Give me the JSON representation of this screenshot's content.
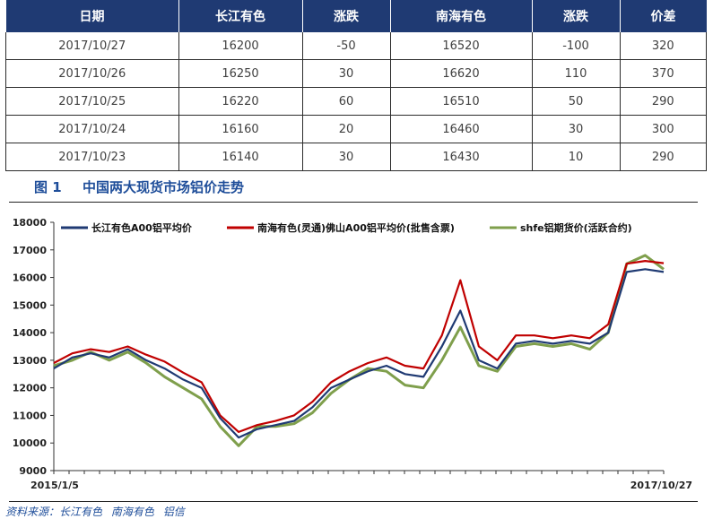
{
  "table": {
    "headers": [
      "日期",
      "长江有色",
      "涨跌",
      "南海有色",
      "涨跌",
      "价差"
    ],
    "rows": [
      [
        "2017/10/27",
        "16200",
        "-50",
        "16520",
        "-100",
        "320"
      ],
      [
        "2017/10/26",
        "16250",
        "30",
        "16620",
        "110",
        "370"
      ],
      [
        "2017/10/25",
        "16220",
        "60",
        "16510",
        "50",
        "290"
      ],
      [
        "2017/10/24",
        "16160",
        "20",
        "16460",
        "30",
        "300"
      ],
      [
        "2017/10/23",
        "16140",
        "30",
        "16430",
        "10",
        "290"
      ]
    ]
  },
  "figure": {
    "number": "图 1",
    "title": "中国两大现货市场铝价走势"
  },
  "source": {
    "label": "资料来源：",
    "items": [
      "长江有色",
      "南海有色",
      "铝信"
    ]
  },
  "chart_data": {
    "type": "line",
    "xlabels": [
      "2015/1/5",
      "2017/10/27"
    ],
    "ylim": [
      9000,
      18000
    ],
    "yticks": [
      9000,
      10000,
      11000,
      12000,
      13000,
      14000,
      15000,
      16000,
      17000,
      18000
    ],
    "legend_position": "top",
    "x": [
      "2015-01",
      "2015-02",
      "2015-03",
      "2015-04",
      "2015-05",
      "2015-06",
      "2015-07",
      "2015-08",
      "2015-09",
      "2015-10",
      "2015-11",
      "2015-12",
      "2016-01",
      "2016-02",
      "2016-03",
      "2016-04",
      "2016-05",
      "2016-06",
      "2016-07",
      "2016-08",
      "2016-09",
      "2016-10",
      "2016-11",
      "2016-12",
      "2017-01",
      "2017-02",
      "2017-03",
      "2017-04",
      "2017-05",
      "2017-06",
      "2017-07",
      "2017-08",
      "2017-09",
      "2017-10"
    ],
    "series": [
      {
        "name": "长江有色A00铝平均价",
        "color": "#1f3a73",
        "values": [
          12700,
          13100,
          13250,
          13100,
          13400,
          13000,
          12700,
          12300,
          12000,
          10900,
          10200,
          10500,
          10650,
          10800,
          11300,
          12000,
          12300,
          12600,
          12800,
          12500,
          12400,
          13500,
          14800,
          13000,
          12700,
          13600,
          13700,
          13600,
          13700,
          13600,
          14000,
          16200,
          16300,
          16200
        ]
      },
      {
        "name": "南海有色(灵通)佛山A00铝平均价(批售含票)",
        "color": "#c00000",
        "values": [
          12900,
          13250,
          13400,
          13300,
          13500,
          13200,
          12950,
          12550,
          12200,
          11000,
          10400,
          10650,
          10800,
          11000,
          11500,
          12200,
          12600,
          12900,
          13100,
          12800,
          12700,
          13900,
          15900,
          13500,
          13000,
          13900,
          13900,
          13800,
          13900,
          13800,
          14300,
          16500,
          16600,
          16520
        ]
      },
      {
        "name": "shfe铝期货价(活跃合约)",
        "color": "#7f9f4c",
        "values": [
          12800,
          13000,
          13300,
          13000,
          13300,
          12900,
          12400,
          12000,
          11600,
          10600,
          9900,
          10600,
          10600,
          10700,
          11100,
          11800,
          12300,
          12700,
          12600,
          12100,
          12000,
          13000,
          14200,
          12800,
          12600,
          13500,
          13600,
          13500,
          13600,
          13400,
          14000,
          16500,
          16800,
          16300
        ]
      }
    ]
  }
}
